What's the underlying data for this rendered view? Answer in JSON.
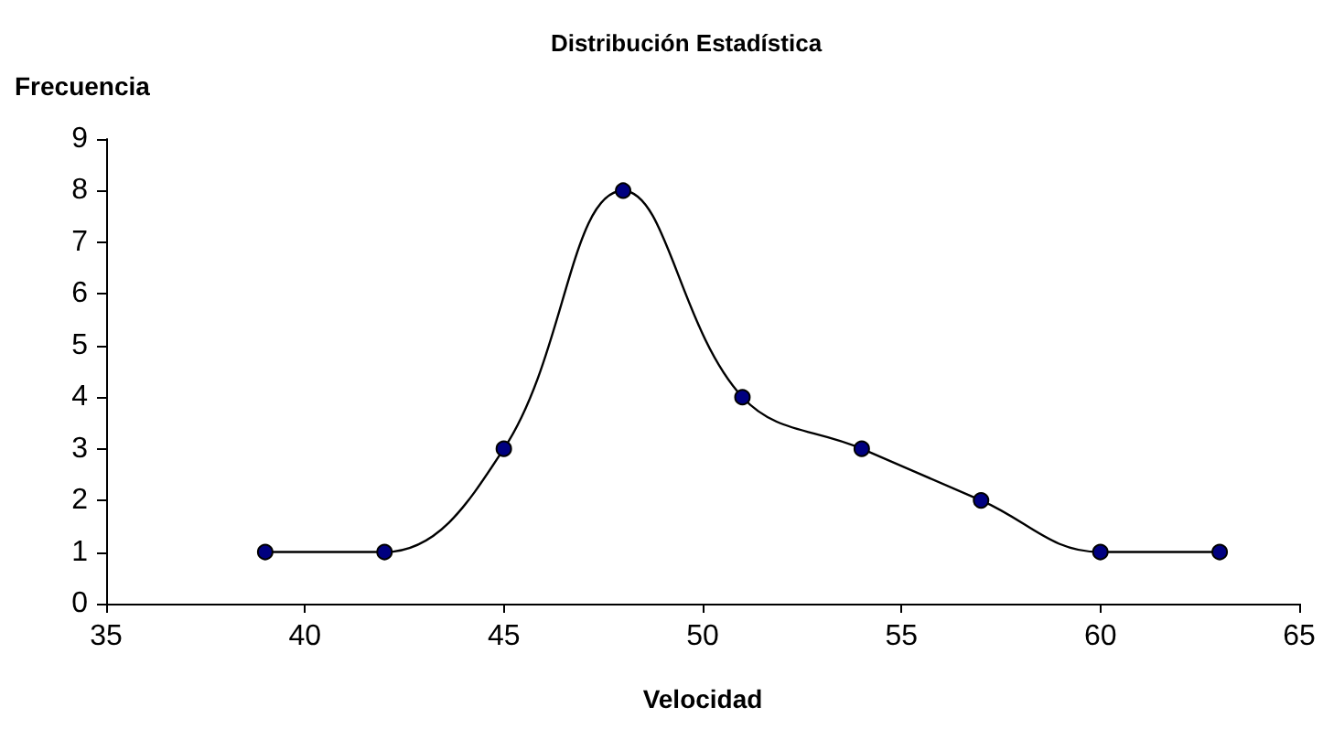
{
  "chart_data": {
    "type": "line",
    "title": "Distribución Estadística",
    "xlabel": "Velocidad",
    "ylabel": "Frecuencia",
    "x": [
      39,
      42,
      45,
      48,
      51,
      54,
      57,
      60,
      63
    ],
    "series": [
      {
        "color": "#000080",
        "values": [
          1,
          1,
          3,
          8,
          4,
          3,
          2,
          1,
          1
        ]
      }
    ],
    "xlim": [
      35,
      65
    ],
    "xticks": [
      35,
      40,
      45,
      50,
      55,
      60,
      65
    ],
    "ylim": [
      0,
      9
    ],
    "yticks": [
      0,
      1,
      2,
      3,
      4,
      5,
      6,
      7,
      8,
      9
    ],
    "grid": false,
    "marker": "circle",
    "line_style": "solid"
  }
}
